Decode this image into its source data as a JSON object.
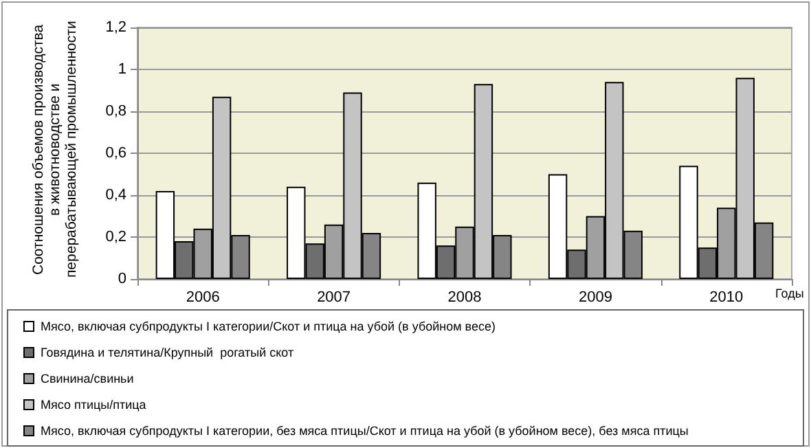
{
  "chart_data": {
    "type": "bar",
    "ylabel": "Соотношения объемов производства в животноводстве и перерабатывающей промышленности",
    "xlabel": "Годы",
    "categories": [
      "2006",
      "2007",
      "2008",
      "2009",
      "2010"
    ],
    "series": [
      {
        "name": "Мясо, включая субпродукты I категории/Скот и птица на убой (в убойном весе)",
        "color": "#ffffff",
        "values": [
          0.42,
          0.44,
          0.46,
          0.5,
          0.54
        ]
      },
      {
        "name": "Говядина и телятина/Крупный  рогатый скот",
        "color": "#6e6e6e",
        "values": [
          0.18,
          0.17,
          0.16,
          0.14,
          0.15
        ]
      },
      {
        "name": "Свинина/свиньи",
        "color": "#a0a0a0",
        "values": [
          0.24,
          0.26,
          0.25,
          0.3,
          0.34
        ]
      },
      {
        "name": "Мясо птицы/птица",
        "color": "#c4c4c4",
        "values": [
          0.87,
          0.89,
          0.93,
          0.94,
          0.96
        ]
      },
      {
        "name": "Мясо, включая субпродукты I категории, без мяса птицы/Скот и птица на убой (в убойном весе), без мяса птицы",
        "color": "#858585",
        "values": [
          0.21,
          0.22,
          0.21,
          0.23,
          0.27
        ]
      }
    ],
    "ylim": [
      0,
      1.2
    ],
    "yticks": [
      0,
      {
        "value": 0.2,
        "label": "0,2"
      },
      {
        "value": 0.4,
        "label": "0,4"
      },
      {
        "value": 0.6,
        "label": "0,6"
      },
      {
        "value": 0.8,
        "label": "0,8"
      },
      1,
      {
        "value": 1.2,
        "label": "1,2"
      }
    ],
    "grid": "y",
    "legend": "bottom"
  }
}
